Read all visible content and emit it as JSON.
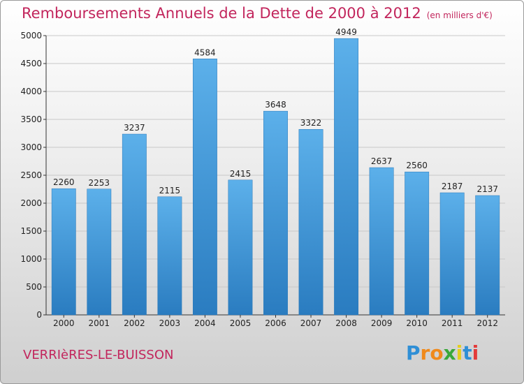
{
  "chart_data": {
    "type": "bar",
    "title": "Remboursements Annuels de la Dette de 2000 à 2012",
    "subtitle": "(en milliers d'€)",
    "categories": [
      "2000",
      "2001",
      "2002",
      "2003",
      "2004",
      "2005",
      "2006",
      "2007",
      "2008",
      "2009",
      "2010",
      "2011",
      "2012"
    ],
    "values": [
      2260,
      2253,
      3237,
      2115,
      4584,
      2415,
      3648,
      3322,
      4949,
      2637,
      2560,
      2187,
      2137
    ],
    "ylim": [
      0,
      5000
    ],
    "yticks": [
      0,
      500,
      1000,
      1500,
      2000,
      2500,
      3000,
      3500,
      4000,
      4500,
      5000
    ],
    "grid": true,
    "bar_color": "#3d94da"
  },
  "commune": "VERRIèRES-LE-BUISSON",
  "logo": {
    "letters": [
      "P",
      "r",
      "o",
      "x",
      "i",
      "t",
      "i"
    ],
    "colors": [
      "#2f8fd6",
      "#f08a1c",
      "#f08a1c",
      "#3aa83a",
      "#e5ce1e",
      "#2f8fd6",
      "#e33b3b"
    ]
  },
  "colors": {
    "title": "#c2255c",
    "grid": "#c8c8c8",
    "axis": "#333333"
  }
}
